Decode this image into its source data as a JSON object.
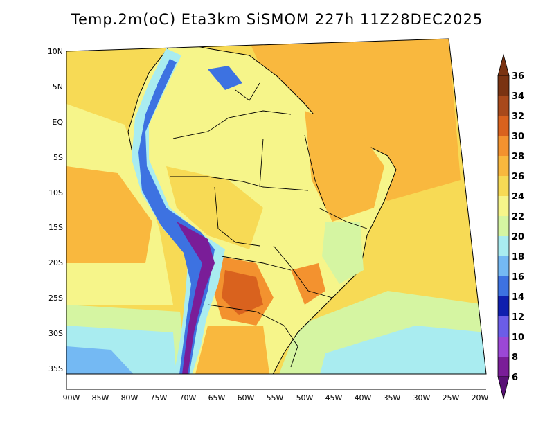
{
  "title": "Temp.2m(oC) Eta3km SiSMOM 227h 11Z28DEC2025",
  "map": {
    "lon_labels": [
      "90W",
      "85W",
      "80W",
      "75W",
      "70W",
      "65W",
      "60W",
      "55W",
      "50W",
      "45W",
      "40W",
      "35W",
      "30W",
      "25W",
      "20W"
    ],
    "lat_labels": [
      "10N",
      "5N",
      "EQ",
      "5S",
      "10S",
      "15S",
      "20S",
      "25S",
      "30S",
      "35S"
    ]
  },
  "colorbar": {
    "labels": [
      "36",
      "34",
      "32",
      "30",
      "28",
      "26",
      "24",
      "22",
      "20",
      "18",
      "16",
      "14",
      "12",
      "10",
      "8",
      "6"
    ],
    "colors": {
      "c34_36": "#7a3312",
      "c32_34": "#a8491b",
      "c30_32": "#d9621e",
      "c28_30": "#f3922f",
      "c26_28": "#f9b83e",
      "c24_26": "#f7da55",
      "c22_24": "#f6f58a",
      "c20_22": "#d5f5a2",
      "c18_20": "#a9ecf0",
      "c16_18": "#74b9f3",
      "c14_16": "#3d72e1",
      "c12_14": "#0f1fae",
      "c10_12": "#6b5de8",
      "c8_10": "#9b47d6",
      "c6_8": "#7a1d98"
    }
  }
}
